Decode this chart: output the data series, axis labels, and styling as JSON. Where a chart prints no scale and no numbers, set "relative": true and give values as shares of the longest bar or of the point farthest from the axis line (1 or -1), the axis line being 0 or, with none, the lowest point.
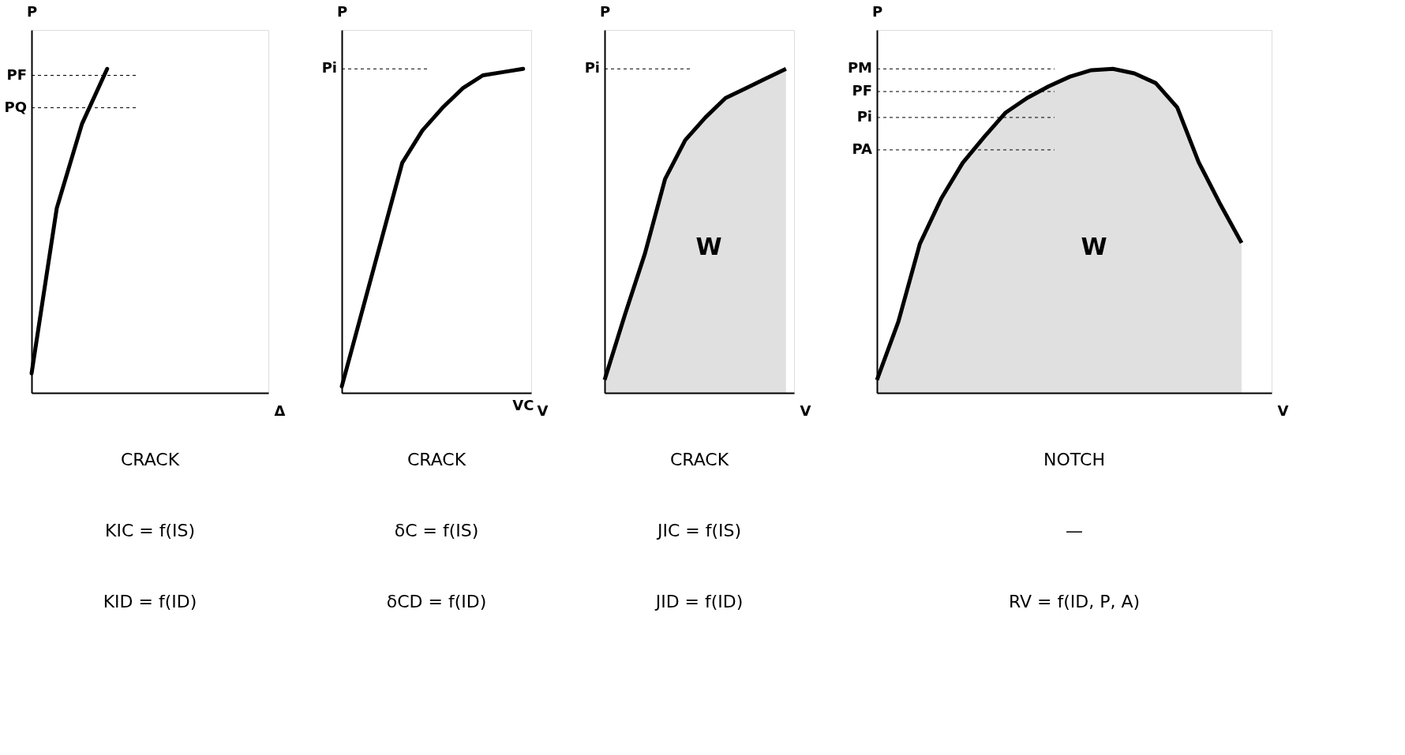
{
  "chart_data": [
    {
      "type": "line",
      "relative": true,
      "xlabel": "Δ",
      "ylabel": "P",
      "categories": [
        null,
        null,
        null,
        null,
        null,
        null,
        null,
        null,
        null,
        null
      ],
      "series": [
        {
          "color": "#000000",
          "values": [
            0.06,
            0.57,
            0.83,
            1.0,
            null,
            null,
            null,
            null,
            null,
            null
          ]
        }
      ],
      "ref_lines": [
        {
          "axis": "y",
          "value": 0.98,
          "label": "PF"
        },
        {
          "axis": "y",
          "value": 0.88,
          "label": "PQ"
        }
      ],
      "annotations": [
        "CRACK",
        "KIC = f(IS)",
        "KID = f(ID)"
      ],
      "grid": false
    },
    {
      "type": "line",
      "relative": true,
      "xlabel": "V",
      "ylabel": "P",
      "categories": [
        null,
        null,
        null,
        null,
        null,
        null,
        null,
        null,
        null,
        null
      ],
      "series": [
        {
          "color": "#000000",
          "values": [
            0.02,
            0.25,
            0.48,
            0.71,
            0.81,
            0.88,
            0.94,
            0.98,
            0.99,
            1.0
          ]
        }
      ],
      "ref_lines": [
        {
          "axis": "y",
          "value": 1.0,
          "label": "Pi"
        }
      ],
      "annotations": [
        "VC",
        "CRACK",
        "δC = f(IS)",
        "δCD = f(ID)"
      ],
      "grid": false
    },
    {
      "type": "area",
      "relative": true,
      "xlabel": "V",
      "ylabel": "P",
      "categories": [
        null,
        null,
        null,
        null,
        null,
        null,
        null,
        null,
        null,
        null
      ],
      "series": [
        {
          "color": "#000000",
          "values": [
            0.04,
            0.24,
            0.43,
            0.66,
            0.78,
            0.85,
            0.91,
            0.94,
            0.97,
            1.0
          ]
        }
      ],
      "ref_lines": [
        {
          "axis": "y",
          "value": 1.0,
          "label": "Pi"
        }
      ],
      "annotations": [
        "W",
        "CRACK",
        "JIC = f(IS)",
        "JID = f(ID)"
      ],
      "grid": false
    },
    {
      "type": "area",
      "relative": true,
      "xlabel": "V",
      "ylabel": "P",
      "categories": [
        null,
        null,
        null,
        null,
        null,
        null,
        null,
        null,
        null,
        null,
        null,
        null,
        null,
        null,
        null,
        null,
        null,
        null,
        null
      ],
      "series": [
        {
          "color": "#000000",
          "values": [
            0.04,
            0.22,
            0.46,
            0.6,
            0.71,
            0.79,
            0.865,
            0.91,
            0.946,
            0.976,
            0.996,
            1.0,
            0.986,
            0.956,
            0.881,
            0.712,
            0.583,
            0.463,
            null
          ]
        }
      ],
      "ref_lines": [
        {
          "axis": "y",
          "value": 1.0,
          "label": "PM"
        },
        {
          "axis": "y",
          "value": 0.93,
          "label": "PF"
        },
        {
          "axis": "y",
          "value": 0.85,
          "label": "Pi"
        },
        {
          "axis": "y",
          "value": 0.75,
          "label": "PA"
        }
      ],
      "annotations": [
        "W",
        "NOTCH",
        "—",
        "RV = f(ID, P, A)"
      ],
      "grid": false
    }
  ]
}
